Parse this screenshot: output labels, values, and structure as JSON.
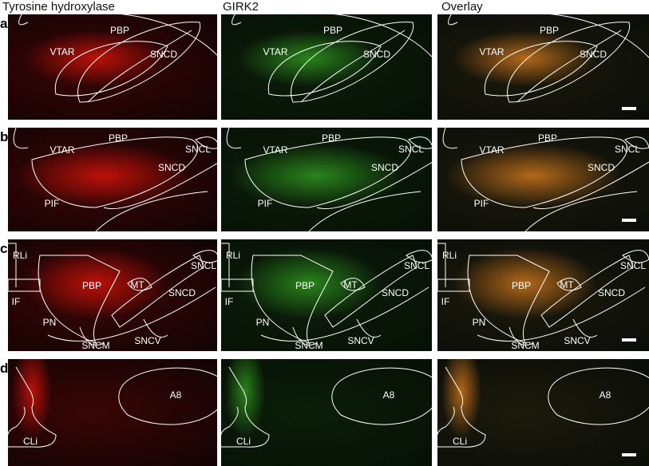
{
  "headers": [
    "Tyrosine hydroxylase",
    "GIRK2",
    "Overlay"
  ],
  "rows": [
    {
      "letter": "a",
      "labels": [
        "VTAR",
        "PBP",
        "SNCD"
      ]
    },
    {
      "letter": "b",
      "labels": [
        "VTAR",
        "PBP",
        "SNCL",
        "SNCD",
        "PIF"
      ]
    },
    {
      "letter": "c",
      "labels": [
        "RLi",
        "PBP",
        "MT",
        "SNCL",
        "SNCD",
        "IF",
        "PN",
        "SNCM",
        "SNCV"
      ]
    },
    {
      "letter": "d",
      "labels": [
        "A8",
        "CLi"
      ]
    }
  ]
}
